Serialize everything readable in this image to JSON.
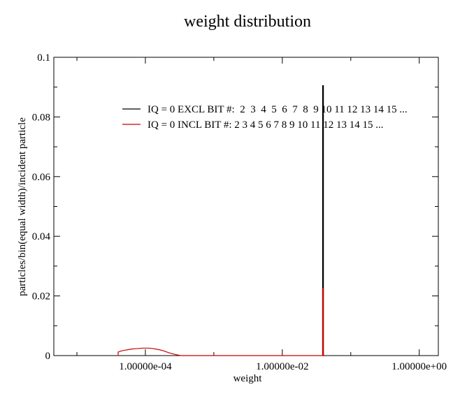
{
  "chart_data": {
    "type": "line",
    "title": "weight distribution",
    "xlabel": "weight",
    "ylabel": "particles/bin(equal width)/incident particle",
    "x_scale": "log",
    "xlim": [
      4.6e-06,
      1.9
    ],
    "ylim": [
      0,
      0.1
    ],
    "x_ticks": [
      {
        "value": 0.0001,
        "label": "1.00000e-04"
      },
      {
        "value": 0.01,
        "label": "1.00000e-02"
      },
      {
        "value": 1,
        "label": "1.00000e+00"
      }
    ],
    "y_ticks": [
      {
        "value": 0,
        "label": "0"
      },
      {
        "value": 0.02,
        "label": "0.02"
      },
      {
        "value": 0.04,
        "label": "0.04"
      },
      {
        "value": 0.06,
        "label": "0.06"
      },
      {
        "value": 0.08,
        "label": "0.08"
      },
      {
        "value": 0.1,
        "label": "0.1"
      }
    ],
    "grid": false,
    "legend_position": "top-right",
    "series": [
      {
        "name": "IQ = 0 EXCL BIT #:  2  3  4  5  6  7  8  9 10 11 12 13 14 15 ...",
        "color": "#000000",
        "x": [
          0.0388,
          0.0388,
          0.0398,
          0.0398,
          0.0415,
          0.0415
        ],
        "y": [
          0,
          0.0905,
          0.0905,
          0.0,
          0.0,
          0
        ]
      },
      {
        "name": "IQ = 0 INCL BIT #: 2 3 4 5 6 7 8 9 10 11 12 13 14 15 ...",
        "color": "#cc0000",
        "x": [
          4e-05,
          4e-05,
          4.5e-05,
          5e-05,
          5.6e-05,
          6.3e-05,
          7.1e-05,
          8e-05,
          9e-05,
          0.0001,
          0.000112,
          0.000126,
          0.000141,
          0.000158,
          0.000178,
          0.0002,
          0.000224,
          0.000251,
          0.000282,
          0.000316,
          0.000316,
          0.0388,
          0.0388,
          0.0398,
          0.0398,
          0.0415
        ],
        "y": [
          0,
          0.0012,
          0.0016,
          0.0018,
          0.002,
          0.0022,
          0.0023,
          0.0024,
          0.0025,
          0.0025,
          0.0025,
          0.0024,
          0.0022,
          0.002,
          0.0017,
          0.0013,
          0.0009,
          0.0006,
          0.0003,
          0.0001,
          0,
          0,
          0.0225,
          0.0225,
          0,
          0
        ]
      }
    ]
  }
}
